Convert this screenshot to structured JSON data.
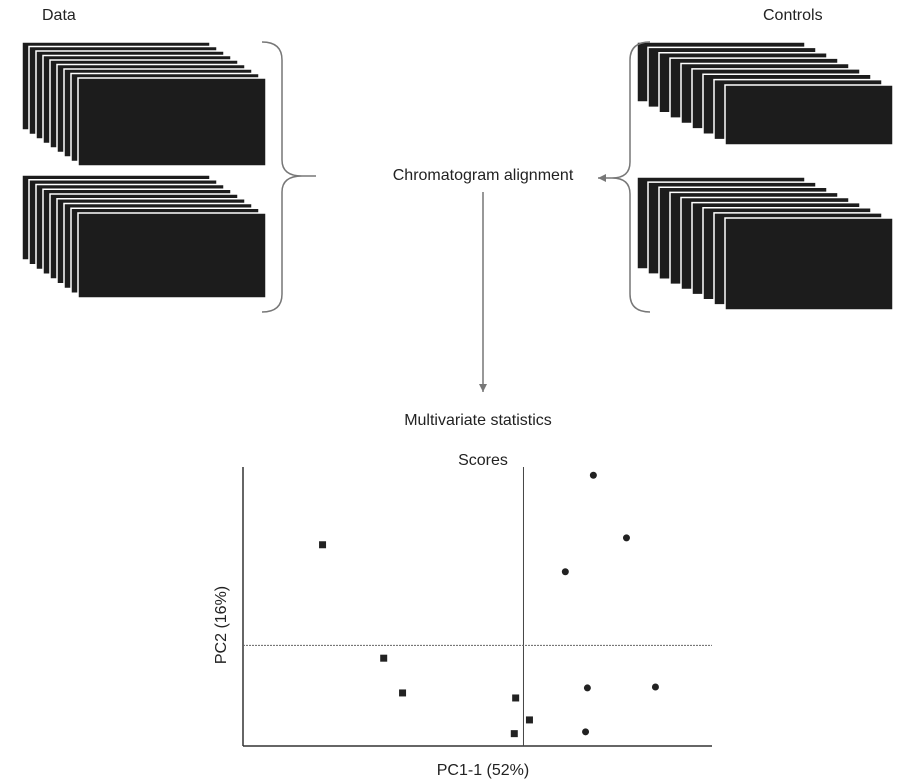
{
  "labels": {
    "data": "Data",
    "controls": "Controls",
    "alignment": "Chromatogram alignment",
    "statistics": "Multivariate statistics"
  },
  "chart_data": {
    "type": "scatter",
    "title": "Scores",
    "x_label": "PC1-1 (52%)",
    "y_label": "PC2 (16%)",
    "xlim": [
      -6.1,
      4.1
    ],
    "ylim": [
      -2.2,
      3.9
    ],
    "reference_lines": {
      "x": 0,
      "y": 0
    },
    "series": [
      {
        "marker": "square",
        "color": "#222222",
        "x": [
          -4.37,
          -3.04,
          -2.63,
          -0.17,
          0.13,
          -0.2
        ],
        "values": [
          2.2,
          -0.28,
          -1.04,
          -1.15,
          -1.63,
          -1.93
        ]
      },
      {
        "marker": "circle",
        "color": "#222222",
        "x": [
          1.52,
          2.24,
          0.91,
          1.39,
          2.87,
          1.35
        ],
        "values": [
          3.72,
          2.35,
          1.61,
          -0.93,
          -0.91,
          -1.89
        ]
      }
    ]
  }
}
